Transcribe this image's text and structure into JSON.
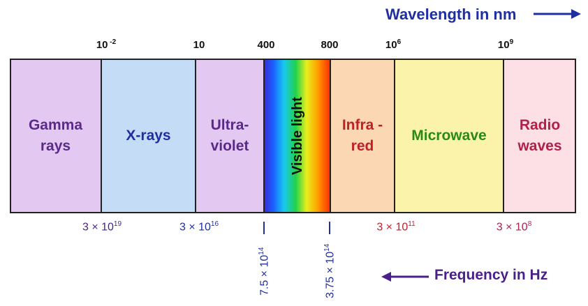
{
  "wavelength_axis": {
    "title": "Wavelength in nm",
    "ticks": [
      {
        "base": "10",
        "exp": " -2"
      },
      {
        "base": "10",
        "exp": ""
      },
      {
        "base": "400",
        "exp": ""
      },
      {
        "base": "800",
        "exp": ""
      },
      {
        "base": "10",
        "exp": "6"
      },
      {
        "base": "10",
        "exp": "9"
      }
    ]
  },
  "bands": [
    {
      "label_lines": [
        "Gamma",
        "rays"
      ],
      "color": "#e3c9f2",
      "text_color": "#5a2a8a"
    },
    {
      "label_lines": [
        "X-rays"
      ],
      "color": "#c5dcf7",
      "text_color": "#1f2fa0"
    },
    {
      "label_lines": [
        "Ultra-",
        "violet"
      ],
      "color": "#e3c9f2",
      "text_color": "#5a2a8a"
    },
    {
      "label_lines": [
        "Visible light"
      ],
      "color": "spectrum",
      "text_color": "#111111"
    },
    {
      "label_lines": [
        "Infra -",
        "red"
      ],
      "color": "#fbd7b3",
      "text_color": "#c0202a"
    },
    {
      "label_lines": [
        "Microwave"
      ],
      "color": "#fbf3a9",
      "text_color": "#2a8a18"
    },
    {
      "label_lines": [
        "Radio",
        "waves"
      ],
      "color": "#fde0e6",
      "text_color": "#b0204a"
    }
  ],
  "frequency_axis": {
    "title": "Frequency in Hz",
    "ticks": [
      {
        "text": "3 × 10",
        "exp": "19",
        "color": "#4a1f8a"
      },
      {
        "text": "3 × 10",
        "exp": "16",
        "color": "#1f2fa0"
      },
      {
        "text": "7.5 × 10",
        "exp": "14",
        "color": "#1f2fa0"
      },
      {
        "text": "3.75 × 10",
        "exp": "14",
        "color": "#1f2fa0"
      },
      {
        "text": "3 × 10",
        "exp": "11",
        "color": "#c0202a"
      },
      {
        "text": "3 × 10",
        "exp": "8",
        "color": "#b0204a"
      }
    ]
  },
  "colors": {
    "wavelength_arrow": "#1f2fa0",
    "frequency_arrow": "#4a1f8a",
    "outline": "#222222"
  }
}
